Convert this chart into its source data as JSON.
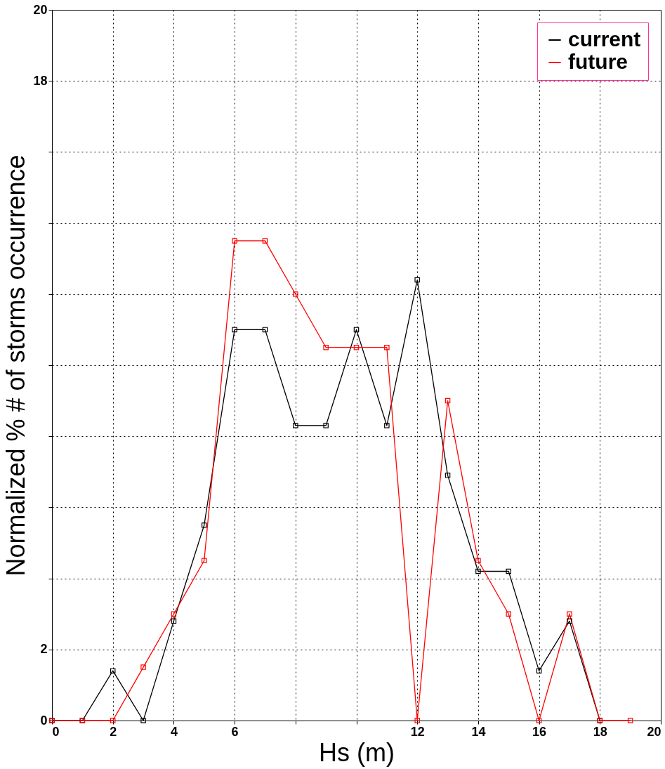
{
  "chart_data": {
    "type": "line",
    "xlabel": "Hs (m)",
    "ylabel": "Normalized % # of storms occurrence",
    "x": [
      0,
      1,
      2,
      3,
      4,
      5,
      6,
      7,
      8,
      9,
      10,
      11,
      12,
      13,
      14,
      15,
      16,
      17,
      18,
      19
    ],
    "series": [
      {
        "name": "current",
        "color": "#000000",
        "values": [
          0,
          0,
          1.4,
          0,
          2.8,
          5.5,
          11,
          11,
          8.3,
          8.3,
          11,
          8.3,
          12.4,
          6.9,
          4.2,
          4.2,
          1.4,
          2.8,
          0,
          null
        ]
      },
      {
        "name": "future",
        "color": "#ff0000",
        "values": [
          0,
          0,
          0,
          1.5,
          3,
          4.5,
          13.5,
          13.5,
          12,
          10.5,
          10.5,
          10.5,
          0,
          9,
          4.5,
          3,
          0,
          3,
          0,
          0
        ]
      }
    ],
    "xlim": [
      0,
      20
    ],
    "ylim": [
      0,
      20
    ],
    "xticks": [
      0,
      2,
      4,
      6,
      {
        "value": 8,
        "label": null
      },
      {
        "value": 10,
        "label": null
      },
      12,
      14,
      16,
      18,
      20
    ],
    "yticks": [
      0,
      2,
      {
        "value": 4,
        "label": null
      },
      {
        "value": 6,
        "label": null
      },
      {
        "value": 8,
        "label": null
      },
      {
        "value": 10,
        "label": null
      },
      {
        "value": 12,
        "label": null
      },
      {
        "value": 14,
        "label": null
      },
      {
        "value": 16,
        "label": null
      },
      18,
      20
    ],
    "grid": true,
    "legend": "top right",
    "marker": "square",
    "line_style": "solid"
  }
}
